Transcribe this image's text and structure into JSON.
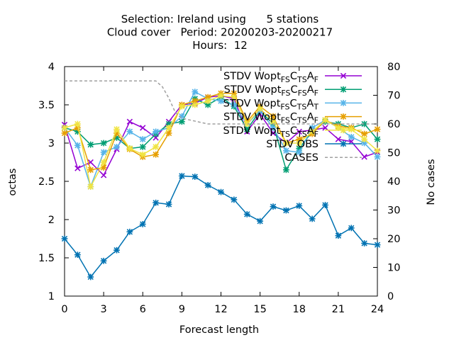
{
  "chart_data": {
    "type": "line",
    "title_lines": [
      "Selection: Ireland using      5 stations",
      "Cloud cover   Period: 20200203-20200217",
      "Hours:  12"
    ],
    "xlabel": "Forecast length",
    "ylabel": "octas",
    "y2label": "No cases",
    "xlim": [
      0,
      24
    ],
    "ylim": [
      1,
      4
    ],
    "y2lim": [
      0,
      80
    ],
    "xticks": [
      0,
      3,
      6,
      9,
      12,
      15,
      18,
      21,
      24
    ],
    "yticks": [
      1,
      1.5,
      2,
      2.5,
      3,
      3.5,
      4
    ],
    "y2ticks": [
      0,
      10,
      20,
      30,
      40,
      50,
      60,
      70,
      80
    ],
    "grid": false,
    "legend_position": "top-right",
    "x": [
      0,
      1,
      2,
      3,
      4,
      5,
      6,
      7,
      8,
      9,
      10,
      11,
      12,
      13,
      14,
      15,
      16,
      17,
      18,
      19,
      20,
      21,
      22,
      23,
      24
    ],
    "series": [
      {
        "name": "STDV Wopt",
        "sub1": "FS",
        "mid": "C",
        "sub2": "TS",
        "end": "A",
        "sub3": "F",
        "color": "#9400d3",
        "marker": "x",
        "values": [
          3.24,
          2.67,
          2.75,
          2.58,
          2.92,
          3.28,
          3.2,
          3.07,
          3.28,
          3.5,
          3.52,
          3.6,
          3.62,
          3.58,
          3.15,
          3.38,
          3.13,
          3.0,
          3.15,
          3.17,
          3.2,
          3.05,
          3.02,
          2.82,
          2.88
        ]
      },
      {
        "name": "STDV Wopt",
        "sub1": "FS",
        "mid": "C",
        "sub2": "FS",
        "end": "A",
        "sub3": "F",
        "color": "#009e73",
        "marker": "star",
        "values": [
          3.2,
          3.15,
          2.98,
          3.0,
          3.07,
          2.93,
          2.95,
          3.12,
          3.25,
          3.28,
          3.58,
          3.5,
          3.6,
          3.48,
          3.18,
          3.42,
          3.25,
          2.65,
          2.93,
          3.15,
          3.28,
          3.25,
          3.2,
          3.25,
          3.05
        ]
      },
      {
        "name": "STDV Wopt",
        "sub1": "FS",
        "mid": "C",
        "sub2": "TS",
        "end": "A",
        "sub3": "T",
        "color": "#56b4e9",
        "marker": "star",
        "values": [
          3.2,
          2.97,
          2.43,
          2.88,
          2.95,
          3.15,
          3.05,
          3.15,
          3.2,
          3.35,
          3.67,
          3.58,
          3.55,
          3.5,
          3.25,
          3.42,
          3.2,
          2.9,
          2.88,
          3.2,
          3.3,
          3.2,
          3.08,
          3.0,
          2.82
        ]
      },
      {
        "name": "STDV Wopt",
        "sub1": "FS",
        "mid": "C",
        "sub2": "TS",
        "end": "A",
        "sub3": "F",
        "color": "#e69f00",
        "marker": "star",
        "values": [
          3.13,
          3.2,
          2.65,
          2.68,
          3.13,
          2.92,
          2.82,
          2.85,
          3.13,
          3.5,
          3.55,
          3.6,
          3.65,
          3.65,
          3.28,
          3.48,
          3.35,
          3.0,
          3.05,
          3.12,
          3.3,
          3.22,
          3.2,
          3.12,
          3.18
        ]
      },
      {
        "name": "STDV Wopt",
        "sub1": "TS",
        "mid": "C",
        "sub2": "TS",
        "end": "A",
        "sub3": "F",
        "color": "#f0e442",
        "marker": "star",
        "values": [
          3.2,
          3.25,
          2.43,
          2.75,
          3.18,
          2.93,
          2.85,
          2.95,
          3.2,
          3.48,
          3.5,
          3.55,
          3.62,
          3.6,
          3.25,
          3.45,
          3.28,
          3.0,
          3.0,
          3.15,
          3.3,
          3.2,
          3.18,
          3.05,
          2.9
        ]
      },
      {
        "name": "STDV OBS",
        "color": "#0072b2",
        "marker": "star",
        "values": [
          1.75,
          1.54,
          1.25,
          1.46,
          1.6,
          1.84,
          1.94,
          2.22,
          2.2,
          2.57,
          2.56,
          2.45,
          2.36,
          2.26,
          2.07,
          1.98,
          2.17,
          2.12,
          2.18,
          2.01,
          2.19,
          1.79,
          1.89,
          1.69,
          1.67
        ]
      },
      {
        "name": "CASES",
        "color": "#a0a0a0",
        "axis": "y2",
        "dashed": true,
        "x": [
          0,
          7,
          7.5,
          8,
          8.5,
          9,
          10,
          11,
          24
        ],
        "values": [
          75,
          75,
          73,
          69,
          64,
          62,
          61,
          60,
          60
        ]
      }
    ]
  }
}
